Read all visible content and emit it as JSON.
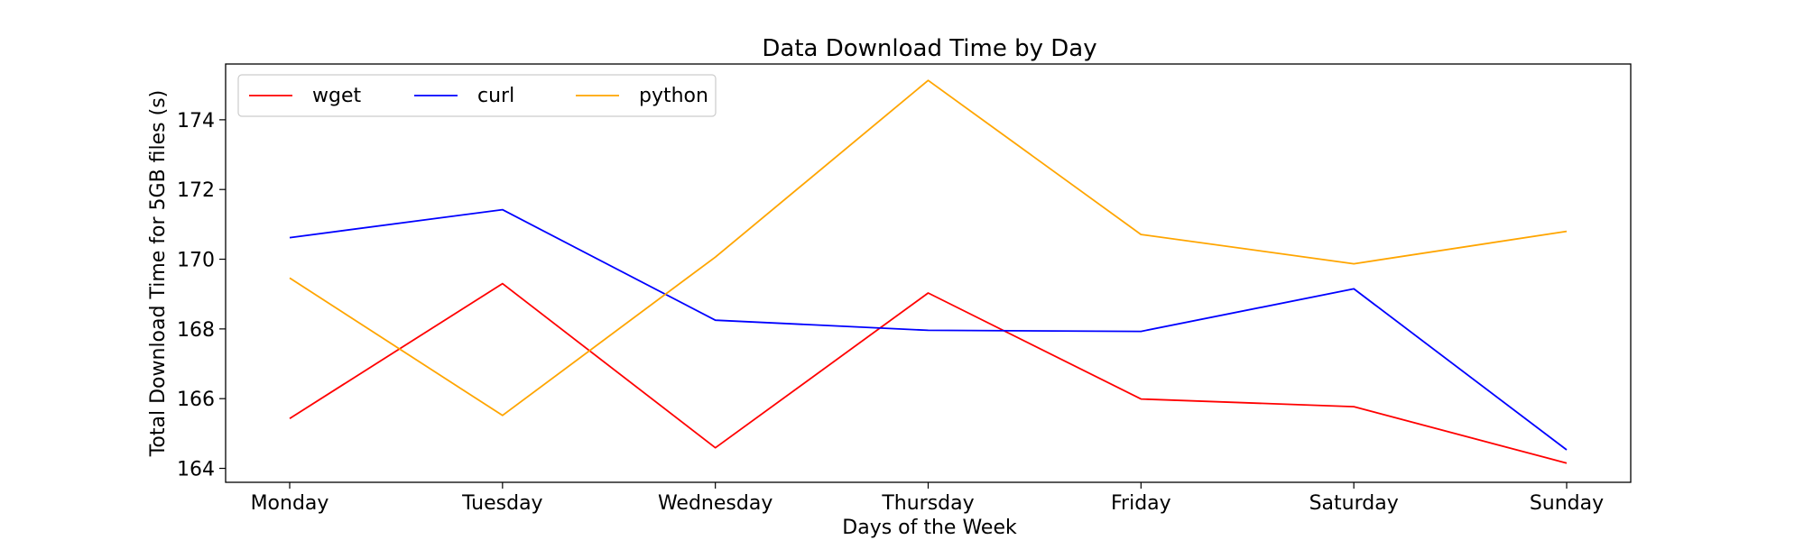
{
  "chart_data": {
    "type": "line",
    "title": "Data Download Time by Day",
    "xlabel": "Days of the Week",
    "ylabel": "Total Download Time for 5GB files (s)",
    "categories": [
      "Monday",
      "Tuesday",
      "Wednesday",
      "Thursday",
      "Friday",
      "Saturday",
      "Sunday"
    ],
    "ylim": [
      163.6,
      175.6
    ],
    "yticks": [
      164,
      166,
      168,
      170,
      172,
      174
    ],
    "grid": false,
    "legend_position": "top-left",
    "series": [
      {
        "name": "wget",
        "color": "#ff0000",
        "values": [
          165.43,
          169.3,
          164.59,
          169.03,
          165.99,
          165.77,
          164.15
        ]
      },
      {
        "name": "curl",
        "color": "#0000ff",
        "values": [
          170.62,
          171.42,
          168.25,
          167.96,
          167.93,
          169.15,
          164.53
        ]
      },
      {
        "name": "python",
        "color": "#ffa500",
        "values": [
          169.46,
          165.52,
          170.06,
          175.13,
          170.71,
          169.87,
          170.8
        ]
      }
    ]
  }
}
